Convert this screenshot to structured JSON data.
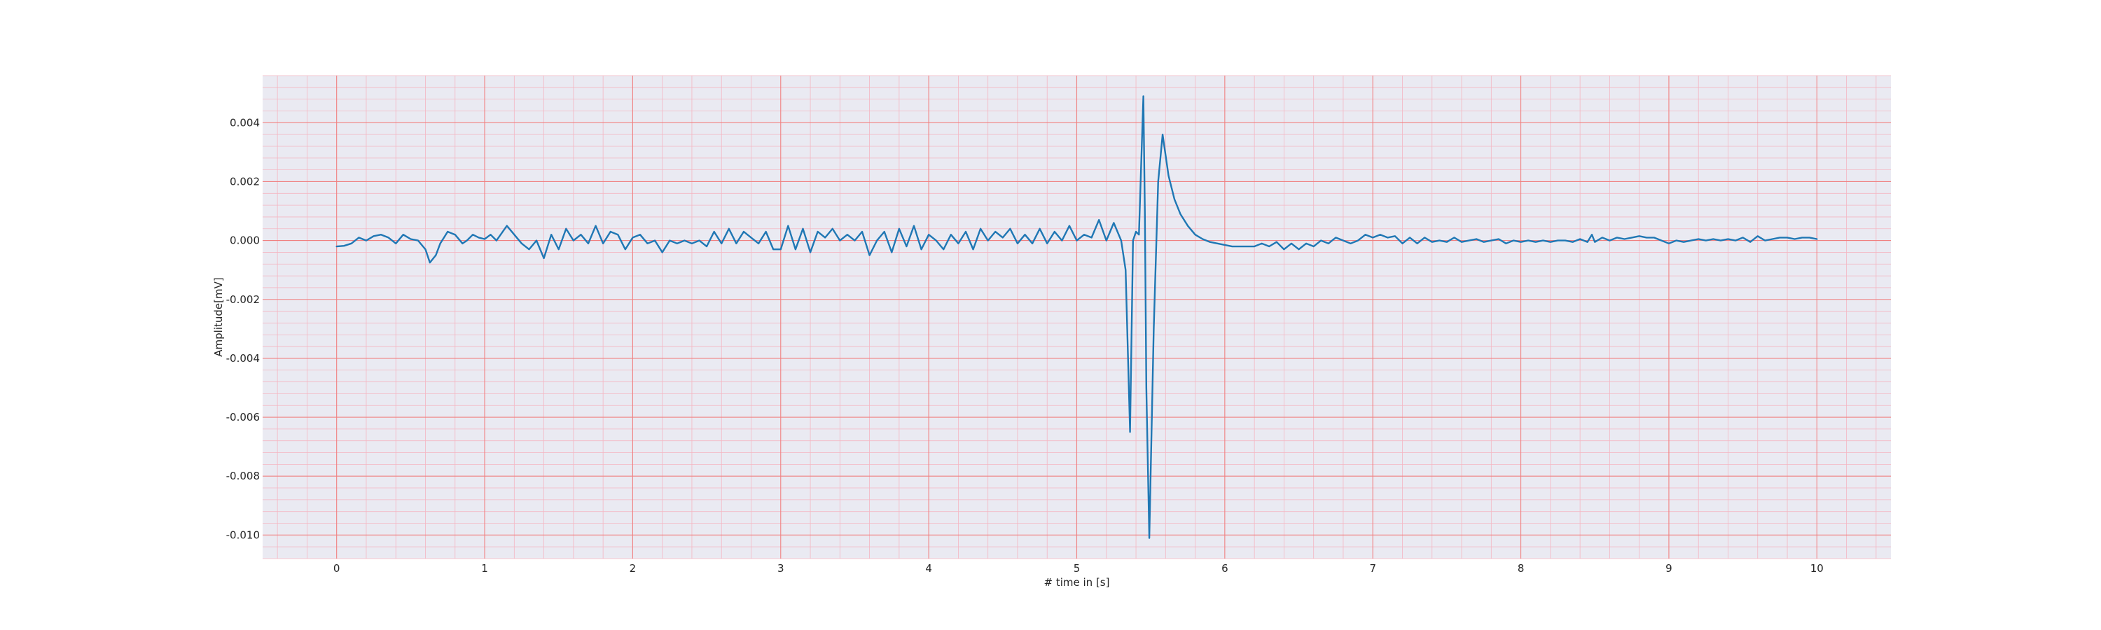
{
  "chart_data": {
    "type": "line",
    "title": "",
    "xlabel": "# time in [s]",
    "ylabel": "Amplitude[mV]",
    "xlim": [
      -0.5,
      10.5
    ],
    "ylim": [
      -0.0108,
      0.0056
    ],
    "x_ticks": [
      0,
      1,
      2,
      3,
      4,
      5,
      6,
      7,
      8,
      9,
      10
    ],
    "x_tick_labels": [
      "0",
      "1",
      "2",
      "3",
      "4",
      "5",
      "6",
      "7",
      "8",
      "9",
      "10"
    ],
    "y_ticks": [
      0.004,
      0.002,
      0.0,
      -0.002,
      -0.004,
      -0.006,
      -0.008,
      -0.01
    ],
    "y_tick_labels": [
      "0.004",
      "0.002",
      "0.000",
      "-0.002",
      "-0.004",
      "-0.006",
      "-0.008",
      "-0.010"
    ],
    "x_minor_step": 0.2,
    "y_minor_step": 0.0004,
    "grid": true,
    "legend": "none",
    "colors": {
      "background": "#eaeaf2",
      "major_grid": "#f08080",
      "minor_grid": "#f4b6c2",
      "line": "#1f77b4"
    },
    "series": [
      {
        "values": [
          [
            0.0,
            -0.0002
          ],
          [
            0.05,
            -0.00018
          ],
          [
            0.1,
            -0.0001
          ],
          [
            0.15,
            0.0001
          ],
          [
            0.2,
            0.0
          ],
          [
            0.25,
            0.00015
          ],
          [
            0.3,
            0.0002
          ],
          [
            0.35,
            0.0001
          ],
          [
            0.4,
            -0.0001
          ],
          [
            0.45,
            0.0002
          ],
          [
            0.5,
            5e-05
          ],
          [
            0.55,
            0.0
          ],
          [
            0.6,
            -0.0003
          ],
          [
            0.63,
            -0.00075
          ],
          [
            0.67,
            -0.0005
          ],
          [
            0.7,
            -0.0001
          ],
          [
            0.75,
            0.0003
          ],
          [
            0.8,
            0.0002
          ],
          [
            0.85,
            -0.0001
          ],
          [
            0.88,
            0.0
          ],
          [
            0.92,
            0.0002
          ],
          [
            0.96,
            0.0001
          ],
          [
            1.0,
            5e-05
          ],
          [
            1.04,
            0.0002
          ],
          [
            1.08,
            0.0
          ],
          [
            1.15,
            0.0005
          ],
          [
            1.2,
            0.0002
          ],
          [
            1.25,
            -0.0001
          ],
          [
            1.3,
            -0.0003
          ],
          [
            1.35,
            0.0
          ],
          [
            1.4,
            -0.0006
          ],
          [
            1.45,
            0.0002
          ],
          [
            1.5,
            -0.0003
          ],
          [
            1.55,
            0.0004
          ],
          [
            1.6,
            0.0
          ],
          [
            1.65,
            0.0002
          ],
          [
            1.7,
            -0.0001
          ],
          [
            1.75,
            0.0005
          ],
          [
            1.8,
            -0.0001
          ],
          [
            1.85,
            0.0003
          ],
          [
            1.9,
            0.0002
          ],
          [
            1.95,
            -0.0003
          ],
          [
            2.0,
            0.0001
          ],
          [
            2.05,
            0.0002
          ],
          [
            2.1,
            -0.0001
          ],
          [
            2.15,
            0.0
          ],
          [
            2.2,
            -0.0004
          ],
          [
            2.25,
            0.0
          ],
          [
            2.3,
            -0.0001
          ],
          [
            2.35,
            0.0
          ],
          [
            2.4,
            -0.0001
          ],
          [
            2.45,
            0.0
          ],
          [
            2.5,
            -0.0002
          ],
          [
            2.55,
            0.0003
          ],
          [
            2.6,
            -0.0001
          ],
          [
            2.65,
            0.0004
          ],
          [
            2.7,
            -0.0001
          ],
          [
            2.75,
            0.0003
          ],
          [
            2.8,
            0.0001
          ],
          [
            2.85,
            -0.0001
          ],
          [
            2.9,
            0.0003
          ],
          [
            2.95,
            -0.0003
          ],
          [
            3.0,
            -0.0003
          ],
          [
            3.05,
            0.0005
          ],
          [
            3.1,
            -0.0003
          ],
          [
            3.15,
            0.0004
          ],
          [
            3.2,
            -0.0004
          ],
          [
            3.25,
            0.0003
          ],
          [
            3.3,
            0.0001
          ],
          [
            3.35,
            0.0004
          ],
          [
            3.4,
            0.0
          ],
          [
            3.45,
            0.0002
          ],
          [
            3.5,
            0.0
          ],
          [
            3.55,
            0.0003
          ],
          [
            3.6,
            -0.0005
          ],
          [
            3.65,
            0.0
          ],
          [
            3.7,
            0.0003
          ],
          [
            3.75,
            -0.0004
          ],
          [
            3.8,
            0.0004
          ],
          [
            3.85,
            -0.0002
          ],
          [
            3.9,
            0.0005
          ],
          [
            3.95,
            -0.0003
          ],
          [
            4.0,
            0.0002
          ],
          [
            4.05,
            0.0
          ],
          [
            4.1,
            -0.0003
          ],
          [
            4.15,
            0.0002
          ],
          [
            4.2,
            -0.0001
          ],
          [
            4.25,
            0.0003
          ],
          [
            4.3,
            -0.0003
          ],
          [
            4.35,
            0.0004
          ],
          [
            4.4,
            0.0
          ],
          [
            4.45,
            0.0003
          ],
          [
            4.5,
            0.0001
          ],
          [
            4.55,
            0.0004
          ],
          [
            4.6,
            -0.0001
          ],
          [
            4.65,
            0.0002
          ],
          [
            4.7,
            -0.0001
          ],
          [
            4.75,
            0.0004
          ],
          [
            4.8,
            -0.0001
          ],
          [
            4.85,
            0.0003
          ],
          [
            4.9,
            0.0
          ],
          [
            4.95,
            0.0005
          ],
          [
            5.0,
            0.0
          ],
          [
            5.05,
            0.0002
          ],
          [
            5.1,
            0.0001
          ],
          [
            5.15,
            0.0007
          ],
          [
            5.2,
            0.0
          ],
          [
            5.25,
            0.0006
          ],
          [
            5.3,
            0.0
          ],
          [
            5.33,
            -0.001
          ],
          [
            5.36,
            -0.0065
          ],
          [
            5.38,
            0.0
          ],
          [
            5.4,
            0.0003
          ],
          [
            5.42,
            0.0002
          ],
          [
            5.45,
            0.0049
          ],
          [
            5.46,
            0.001
          ],
          [
            5.47,
            -0.005
          ],
          [
            5.49,
            -0.0101
          ],
          [
            5.52,
            -0.003
          ],
          [
            5.55,
            0.002
          ],
          [
            5.58,
            0.0036
          ],
          [
            5.62,
            0.0022
          ],
          [
            5.66,
            0.0014
          ],
          [
            5.7,
            0.0009
          ],
          [
            5.75,
            0.0005
          ],
          [
            5.8,
            0.0002
          ],
          [
            5.85,
            5e-05
          ],
          [
            5.9,
            -5e-05
          ],
          [
            5.95,
            -0.0001
          ],
          [
            6.0,
            -0.00015
          ],
          [
            6.05,
            -0.0002
          ],
          [
            6.1,
            -0.0002
          ],
          [
            6.15,
            -0.0002
          ],
          [
            6.2,
            -0.0002
          ],
          [
            6.25,
            -0.0001
          ],
          [
            6.3,
            -0.0002
          ],
          [
            6.35,
            -5e-05
          ],
          [
            6.4,
            -0.0003
          ],
          [
            6.45,
            -0.0001
          ],
          [
            6.5,
            -0.0003
          ],
          [
            6.55,
            -0.0001
          ],
          [
            6.6,
            -0.0002
          ],
          [
            6.65,
            0.0
          ],
          [
            6.7,
            -0.0001
          ],
          [
            6.75,
            0.0001
          ],
          [
            6.8,
            0.0
          ],
          [
            6.85,
            -0.0001
          ],
          [
            6.9,
            0.0
          ],
          [
            6.95,
            0.0002
          ],
          [
            7.0,
            0.0001
          ],
          [
            7.05,
            0.0002
          ],
          [
            7.1,
            0.0001
          ],
          [
            7.15,
            0.00015
          ],
          [
            7.2,
            -0.0001
          ],
          [
            7.25,
            0.0001
          ],
          [
            7.3,
            -0.0001
          ],
          [
            7.35,
            0.0001
          ],
          [
            7.4,
            -5e-05
          ],
          [
            7.45,
            0.0
          ],
          [
            7.5,
            -5e-05
          ],
          [
            7.55,
            0.0001
          ],
          [
            7.6,
            -5e-05
          ],
          [
            7.65,
            0.0
          ],
          [
            7.7,
            5e-05
          ],
          [
            7.75,
            -5e-05
          ],
          [
            7.8,
            0.0
          ],
          [
            7.85,
            5e-05
          ],
          [
            7.9,
            -0.0001
          ],
          [
            7.95,
            0.0
          ],
          [
            8.0,
            -5e-05
          ],
          [
            8.05,
            0.0
          ],
          [
            8.1,
            -5e-05
          ],
          [
            8.15,
            0.0
          ],
          [
            8.2,
            -5e-05
          ],
          [
            8.25,
            0.0
          ],
          [
            8.3,
            0.0
          ],
          [
            8.35,
            -5e-05
          ],
          [
            8.4,
            5e-05
          ],
          [
            8.45,
            -5e-05
          ],
          [
            8.48,
            0.0002
          ],
          [
            8.5,
            -5e-05
          ],
          [
            8.55,
            0.0001
          ],
          [
            8.6,
            0.0
          ],
          [
            8.65,
            0.0001
          ],
          [
            8.7,
            5e-05
          ],
          [
            8.75,
            0.0001
          ],
          [
            8.8,
            0.00015
          ],
          [
            8.85,
            0.0001
          ],
          [
            8.9,
            0.0001
          ],
          [
            8.95,
            0.0
          ],
          [
            9.0,
            -0.0001
          ],
          [
            9.05,
            0.0
          ],
          [
            9.1,
            -5e-05
          ],
          [
            9.15,
            0.0
          ],
          [
            9.2,
            5e-05
          ],
          [
            9.25,
            0.0
          ],
          [
            9.3,
            5e-05
          ],
          [
            9.35,
            0.0
          ],
          [
            9.4,
            5e-05
          ],
          [
            9.45,
            0.0
          ],
          [
            9.5,
            0.0001
          ],
          [
            9.55,
            -5e-05
          ],
          [
            9.6,
            0.00015
          ],
          [
            9.65,
            0.0
          ],
          [
            9.7,
            5e-05
          ],
          [
            9.75,
            0.0001
          ],
          [
            9.8,
            0.0001
          ],
          [
            9.85,
            5e-05
          ],
          [
            9.9,
            0.0001
          ],
          [
            9.95,
            0.0001
          ],
          [
            10.0,
            5e-05
          ]
        ]
      }
    ]
  }
}
